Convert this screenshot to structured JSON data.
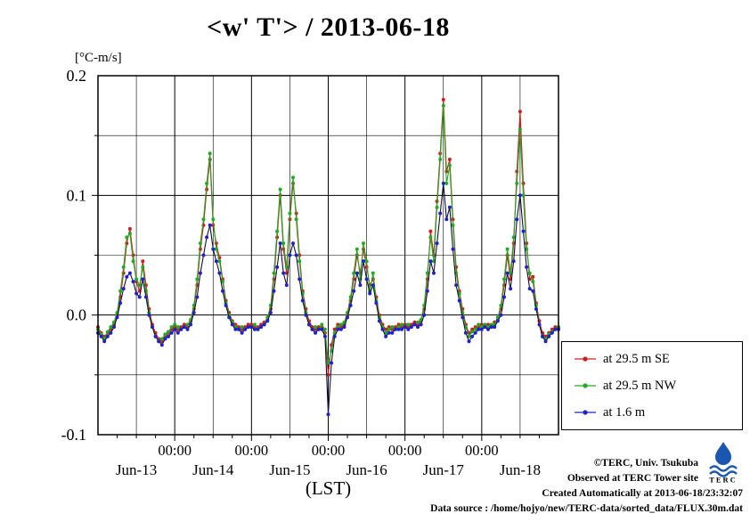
{
  "title": "<w' T'> / 2013-06-18",
  "axis": {
    "unit_label": "[°C-m/s]",
    "y_ticks": [
      "0.2",
      "0.1",
      "0.0",
      "-0.1"
    ],
    "y_tick_values": [
      0.2,
      0.1,
      0.0,
      -0.1
    ],
    "x_label": "(LST)"
  },
  "legend": {
    "items": [
      {
        "label": "at 29.5 m SE",
        "color": "#cc2020"
      },
      {
        "label": "at 29.5 m NW",
        "color": "#22aa22"
      },
      {
        "label": "at 1.6 m",
        "color": "#2020cc"
      }
    ]
  },
  "credits": {
    "line1": "©TERC, Univ. Tsukuba",
    "line2": "Observed at TERC Tower site",
    "line3": "Created Automatically at 2013-06-18/23:32:07",
    "line4": "Data source : /home/hojyo/new/TERC-data/sorted_data/FLUX.30m.dat"
  },
  "logo": {
    "text": "TERC"
  },
  "chart_data": {
    "type": "line",
    "title": "<w' T'> / 2013-06-18",
    "xlabel": "(LST)",
    "ylabel": "[°C-m/s]",
    "xlim": [
      0,
      144
    ],
    "ylim": [
      -0.1,
      0.2
    ],
    "x_step_hours": 1,
    "x_major_ticks_hours": [
      24,
      48,
      72,
      96,
      120
    ],
    "x_tick_label": "00:00",
    "day_label_positions_hours": [
      12,
      36,
      60,
      84,
      108,
      132
    ],
    "day_labels": [
      "Jun-13",
      "Jun-14",
      "Jun-15",
      "Jun-16",
      "Jun-17",
      "Jun-18"
    ],
    "grid": {
      "x_interval_hours": 12,
      "y_interval": 0.05,
      "on": true
    },
    "legend_position": "outside-right",
    "series": [
      {
        "name": "at 29.5 m SE",
        "color": "#cc2020",
        "line_color": "#cc2020",
        "values": [
          -0.01,
          -0.015,
          -0.018,
          -0.015,
          -0.012,
          -0.008,
          0.0,
          0.015,
          0.035,
          0.06,
          0.072,
          0.05,
          0.028,
          0.02,
          0.045,
          0.025,
          0.005,
          -0.008,
          -0.015,
          -0.02,
          -0.022,
          -0.018,
          -0.015,
          -0.012,
          -0.01,
          -0.012,
          -0.01,
          -0.008,
          -0.01,
          -0.005,
          0.005,
          0.025,
          0.055,
          0.075,
          0.105,
          0.13,
          0.075,
          0.06,
          0.048,
          0.03,
          0.012,
          0.002,
          -0.005,
          -0.008,
          -0.01,
          -0.012,
          -0.01,
          -0.008,
          -0.008,
          -0.01,
          -0.01,
          -0.008,
          -0.006,
          -0.004,
          0.005,
          0.03,
          0.065,
          0.1,
          0.055,
          0.035,
          0.08,
          0.11,
          0.085,
          0.05,
          0.02,
          0.005,
          -0.005,
          -0.01,
          -0.012,
          -0.01,
          -0.01,
          -0.015,
          -0.05,
          -0.025,
          -0.012,
          -0.008,
          -0.01,
          -0.008,
          0.0,
          0.012,
          0.03,
          0.05,
          0.035,
          0.055,
          0.04,
          0.025,
          0.03,
          0.015,
          0.0,
          -0.008,
          -0.012,
          -0.01,
          -0.012,
          -0.01,
          -0.008,
          -0.01,
          -0.008,
          -0.01,
          -0.008,
          -0.006,
          -0.008,
          -0.005,
          0.005,
          0.03,
          0.07,
          0.05,
          0.095,
          0.135,
          0.18,
          0.12,
          0.13,
          0.08,
          0.04,
          0.02,
          0.005,
          -0.008,
          -0.015,
          -0.012,
          -0.01,
          -0.01,
          -0.008,
          -0.01,
          -0.008,
          -0.01,
          -0.006,
          -0.004,
          0.005,
          0.025,
          0.05,
          0.03,
          0.06,
          0.12,
          0.17,
          0.11,
          0.06,
          0.03,
          0.032,
          0.01,
          -0.005,
          -0.015,
          -0.018,
          -0.015,
          -0.012,
          -0.01,
          -0.01
        ]
      },
      {
        "name": "at 29.5 m NW",
        "color": "#22aa22",
        "line_color": "#22aa22",
        "values": [
          -0.012,
          -0.016,
          -0.02,
          -0.014,
          -0.01,
          -0.006,
          0.002,
          0.02,
          0.04,
          0.065,
          0.068,
          0.045,
          0.03,
          0.025,
          0.04,
          0.02,
          0.002,
          -0.01,
          -0.018,
          -0.022,
          -0.02,
          -0.016,
          -0.014,
          -0.01,
          -0.008,
          -0.01,
          -0.012,
          -0.01,
          -0.008,
          -0.004,
          0.008,
          0.03,
          0.06,
          0.08,
          0.11,
          0.135,
          0.08,
          0.055,
          0.045,
          0.028,
          0.01,
          0.0,
          -0.006,
          -0.01,
          -0.012,
          -0.01,
          -0.012,
          -0.01,
          -0.01,
          -0.008,
          -0.012,
          -0.01,
          -0.008,
          -0.002,
          0.008,
          0.035,
          0.07,
          0.105,
          0.06,
          0.04,
          0.085,
          0.115,
          0.08,
          0.045,
          0.018,
          0.002,
          -0.008,
          -0.012,
          -0.01,
          -0.012,
          -0.008,
          -0.012,
          -0.04,
          -0.03,
          -0.015,
          -0.01,
          -0.008,
          -0.006,
          0.002,
          0.015,
          0.035,
          0.055,
          0.03,
          0.06,
          0.045,
          0.02,
          0.035,
          0.012,
          -0.002,
          -0.01,
          -0.015,
          -0.012,
          -0.01,
          -0.012,
          -0.01,
          -0.008,
          -0.01,
          -0.008,
          -0.01,
          -0.008,
          -0.006,
          -0.004,
          0.008,
          0.035,
          0.065,
          0.045,
          0.09,
          0.13,
          0.175,
          0.11,
          0.125,
          0.075,
          0.035,
          0.018,
          0.002,
          -0.01,
          -0.018,
          -0.014,
          -0.012,
          -0.008,
          -0.01,
          -0.008,
          -0.01,
          -0.008,
          -0.008,
          -0.002,
          0.008,
          0.03,
          0.055,
          0.035,
          0.065,
          0.11,
          0.155,
          0.1,
          0.055,
          0.035,
          0.028,
          0.008,
          -0.008,
          -0.018,
          -0.02,
          -0.016,
          -0.014,
          -0.012,
          -0.01
        ]
      },
      {
        "name": "at 1.6 m",
        "color": "#2020cc",
        "line_color": "#10103a",
        "values": [
          -0.015,
          -0.018,
          -0.022,
          -0.018,
          -0.015,
          -0.01,
          -0.002,
          0.01,
          0.022,
          0.032,
          0.035,
          0.028,
          0.018,
          0.015,
          0.03,
          0.015,
          0.0,
          -0.01,
          -0.018,
          -0.022,
          -0.025,
          -0.02,
          -0.018,
          -0.015,
          -0.012,
          -0.015,
          -0.012,
          -0.01,
          -0.012,
          -0.008,
          0.002,
          0.015,
          0.035,
          0.05,
          0.065,
          0.075,
          0.055,
          0.045,
          0.035,
          0.02,
          0.008,
          -0.002,
          -0.008,
          -0.012,
          -0.012,
          -0.015,
          -0.012,
          -0.01,
          -0.01,
          -0.012,
          -0.012,
          -0.01,
          -0.008,
          -0.005,
          0.002,
          0.02,
          0.04,
          0.06,
          0.035,
          0.025,
          0.05,
          0.06,
          0.05,
          0.03,
          0.012,
          0.0,
          -0.008,
          -0.012,
          -0.015,
          -0.012,
          -0.012,
          -0.018,
          -0.083,
          -0.04,
          -0.018,
          -0.012,
          -0.012,
          -0.01,
          -0.002,
          0.008,
          0.02,
          0.035,
          0.025,
          0.045,
          0.03,
          0.018,
          0.025,
          0.01,
          -0.005,
          -0.012,
          -0.018,
          -0.015,
          -0.015,
          -0.012,
          -0.012,
          -0.012,
          -0.01,
          -0.012,
          -0.01,
          -0.008,
          -0.01,
          -0.008,
          0.0,
          0.02,
          0.045,
          0.035,
          0.06,
          0.085,
          0.11,
          0.08,
          0.09,
          0.055,
          0.025,
          0.012,
          -0.002,
          -0.015,
          -0.022,
          -0.018,
          -0.015,
          -0.012,
          -0.012,
          -0.01,
          -0.012,
          -0.01,
          -0.01,
          -0.005,
          0.0,
          0.015,
          0.035,
          0.022,
          0.045,
          0.08,
          0.1,
          0.07,
          0.04,
          0.022,
          0.02,
          0.005,
          -0.008,
          -0.018,
          -0.022,
          -0.018,
          -0.015,
          -0.012,
          -0.012
        ]
      }
    ]
  }
}
